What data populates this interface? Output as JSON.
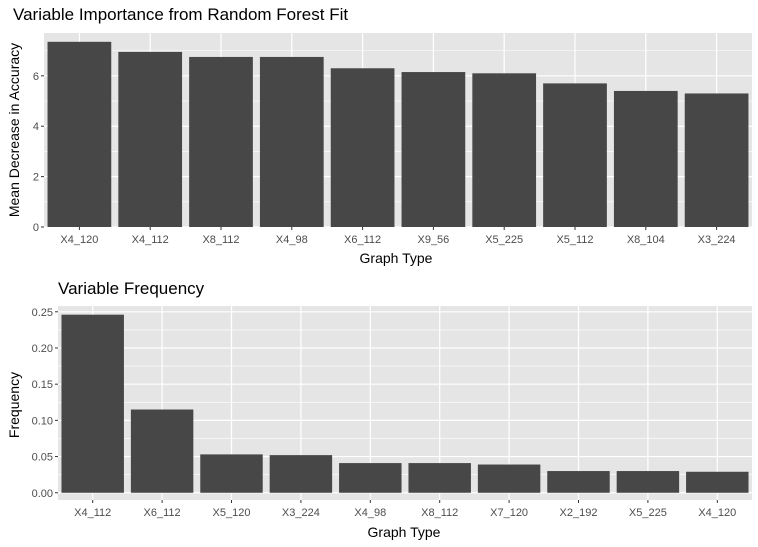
{
  "chart_data": [
    {
      "type": "bar",
      "title": "Variable Importance from Random Forest Fit",
      "xlabel": "Graph Type",
      "ylabel": "Mean Decrease in Accuracy",
      "categories": [
        "X4_120",
        "X4_112",
        "X8_112",
        "X4_98",
        "X6_112",
        "X9_56",
        "X5_225",
        "X5_112",
        "X8_104",
        "X3_224"
      ],
      "values": [
        7.35,
        6.95,
        6.75,
        6.75,
        6.3,
        6.15,
        6.1,
        5.7,
        5.4,
        5.3
      ],
      "ylim": [
        0,
        7.7
      ],
      "yticks": [
        0,
        2,
        4,
        6
      ],
      "ytick_labels": [
        "0",
        "2",
        "4",
        "6"
      ],
      "grid": true,
      "colors": {
        "bar": "#474747",
        "panel": "#e5e5e5",
        "grid": "#ffffff"
      }
    },
    {
      "type": "bar",
      "title": "Variable Frequency",
      "xlabel": "Graph Type",
      "ylabel": "Frequency",
      "categories": [
        "X4_112",
        "X6_112",
        "X5_120",
        "X3_224",
        "X4_98",
        "X8_112",
        "X7_120",
        "X2_192",
        "X5_225",
        "X4_120"
      ],
      "values": [
        0.246,
        0.115,
        0.053,
        0.052,
        0.041,
        0.041,
        0.039,
        0.03,
        0.03,
        0.029
      ],
      "ylim": [
        -0.01,
        0.258
      ],
      "yticks": [
        0,
        0.05,
        0.1,
        0.15,
        0.2,
        0.25
      ],
      "ytick_labels": [
        "0.00",
        "0.05",
        "0.10",
        "0.15",
        "0.20",
        "0.25"
      ],
      "grid": true,
      "colors": {
        "bar": "#474747",
        "panel": "#e5e5e5",
        "grid": "#ffffff"
      }
    }
  ]
}
